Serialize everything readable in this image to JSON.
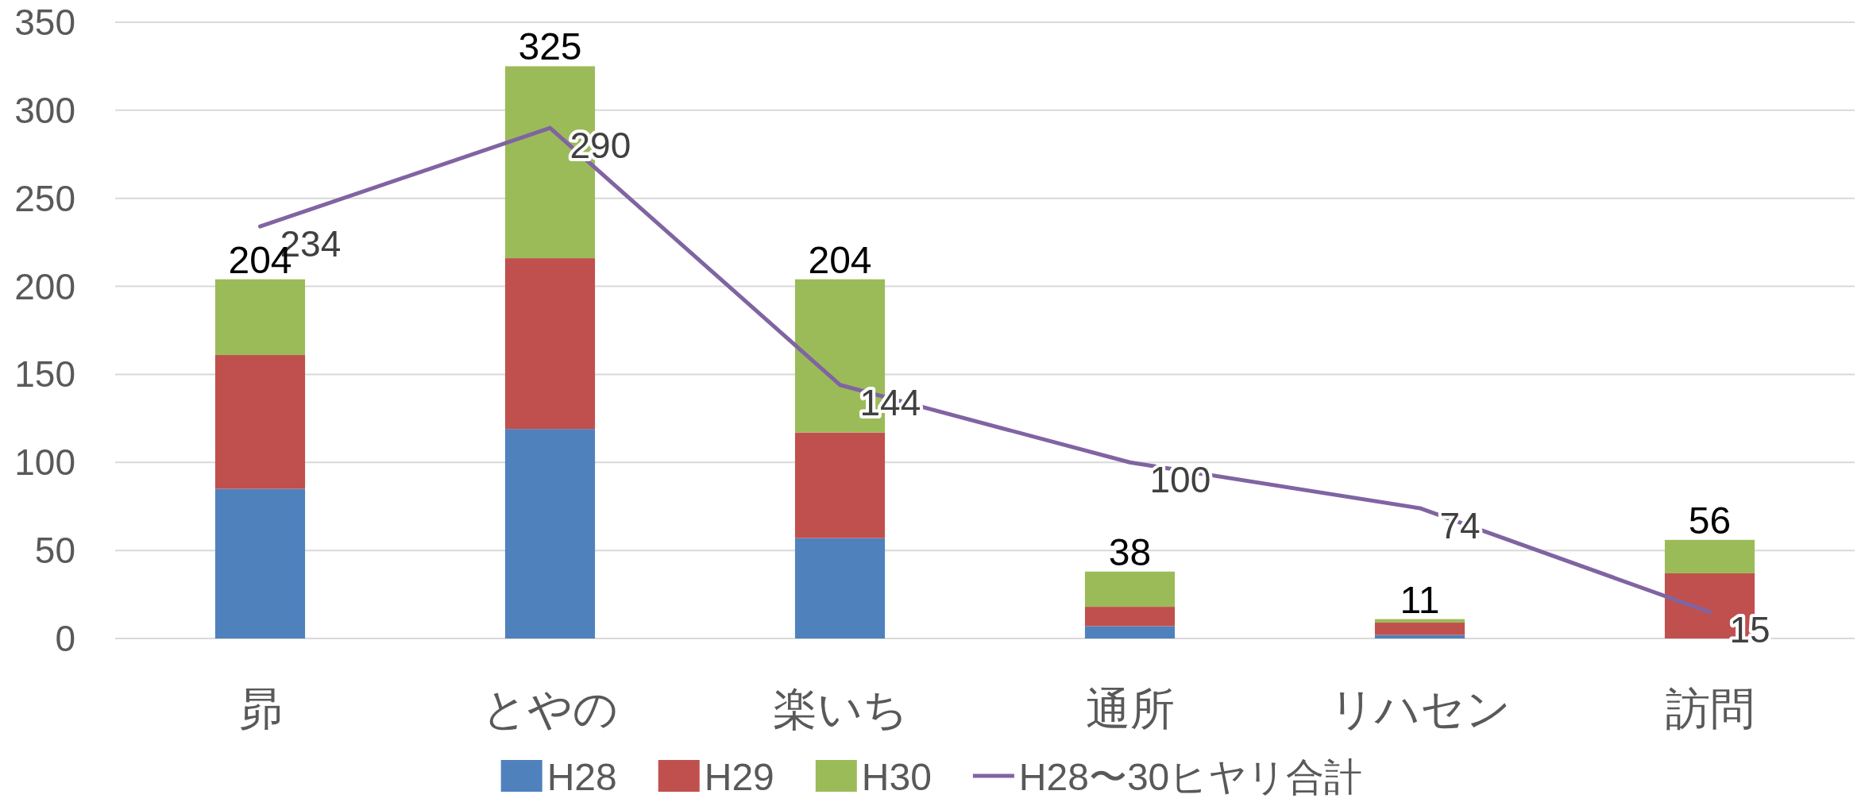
{
  "chart_data": {
    "type": "bar",
    "stacked": true,
    "categories": [
      "昴",
      "とやの",
      "楽いち",
      "通所",
      "リハセン",
      "訪問"
    ],
    "series": [
      {
        "name": "H28",
        "color": "#4f81bd",
        "values": [
          85,
          119,
          57,
          7,
          2,
          0
        ]
      },
      {
        "name": "H29",
        "color": "#c0504d",
        "values": [
          76,
          97,
          60,
          11,
          7,
          37
        ]
      },
      {
        "name": "H30",
        "color": "#9bbb59",
        "values": [
          43,
          109,
          87,
          20,
          2,
          19
        ]
      },
      {
        "name": "H28〜30ヒヤリ合計",
        "type": "line",
        "color": "#8064a2",
        "values": [
          234,
          290,
          144,
          100,
          74,
          15
        ],
        "value_labels": [
          "234",
          "290",
          "144",
          "100",
          "74",
          "15"
        ]
      }
    ],
    "totals": [
      "204",
      "325",
      "204",
      "38",
      "11",
      "56"
    ],
    "ylim": [
      0,
      350
    ],
    "yticks": [
      0,
      50,
      100,
      150,
      200,
      250,
      300,
      350
    ],
    "grid": "y",
    "legend": "bottom"
  }
}
